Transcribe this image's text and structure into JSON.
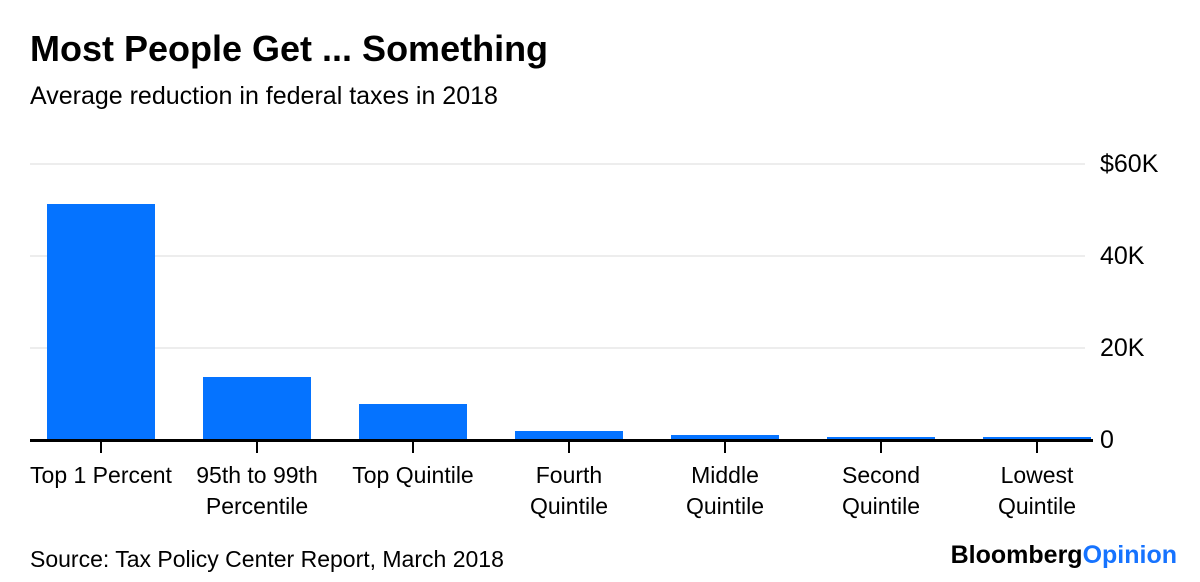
{
  "header": {
    "title": "Most People Get ... Something",
    "subtitle": "Average reduction in federal taxes in 2018"
  },
  "footer": {
    "source": "Source: Tax Policy Center Report, March 2018",
    "brand_black": "Bloomberg",
    "brand_accent": "Opinion"
  },
  "colors": {
    "bar": "#0573ff",
    "brand_accent": "#1673ff",
    "gridline": "#ededed",
    "axis": "#000000",
    "text": "#000000"
  },
  "chart_data": {
    "type": "bar",
    "title": "Most People Get ... Something",
    "subtitle": "Average reduction in federal taxes in 2018",
    "categories": [
      "Top 1 Percent",
      "95th to 99th Percentile",
      "Top Quintile",
      "Fourth Quintile",
      "Middle Quintile",
      "Second Quintile",
      "Lowest Quintile"
    ],
    "values": [
      51140,
      13480,
      7640,
      1810,
      930,
      380,
      60
    ],
    "xlabel": "",
    "ylabel": "",
    "ylim": [
      0,
      60000
    ],
    "yticks": [
      {
        "value": 60000,
        "label": "$60K"
      },
      {
        "value": 40000,
        "label": "40K"
      },
      {
        "value": 20000,
        "label": "20K"
      },
      {
        "value": 0,
        "label": "0"
      }
    ],
    "grid": true,
    "legend": false,
    "gridlines_horizontal": true,
    "bar_color": "#0573ff"
  }
}
